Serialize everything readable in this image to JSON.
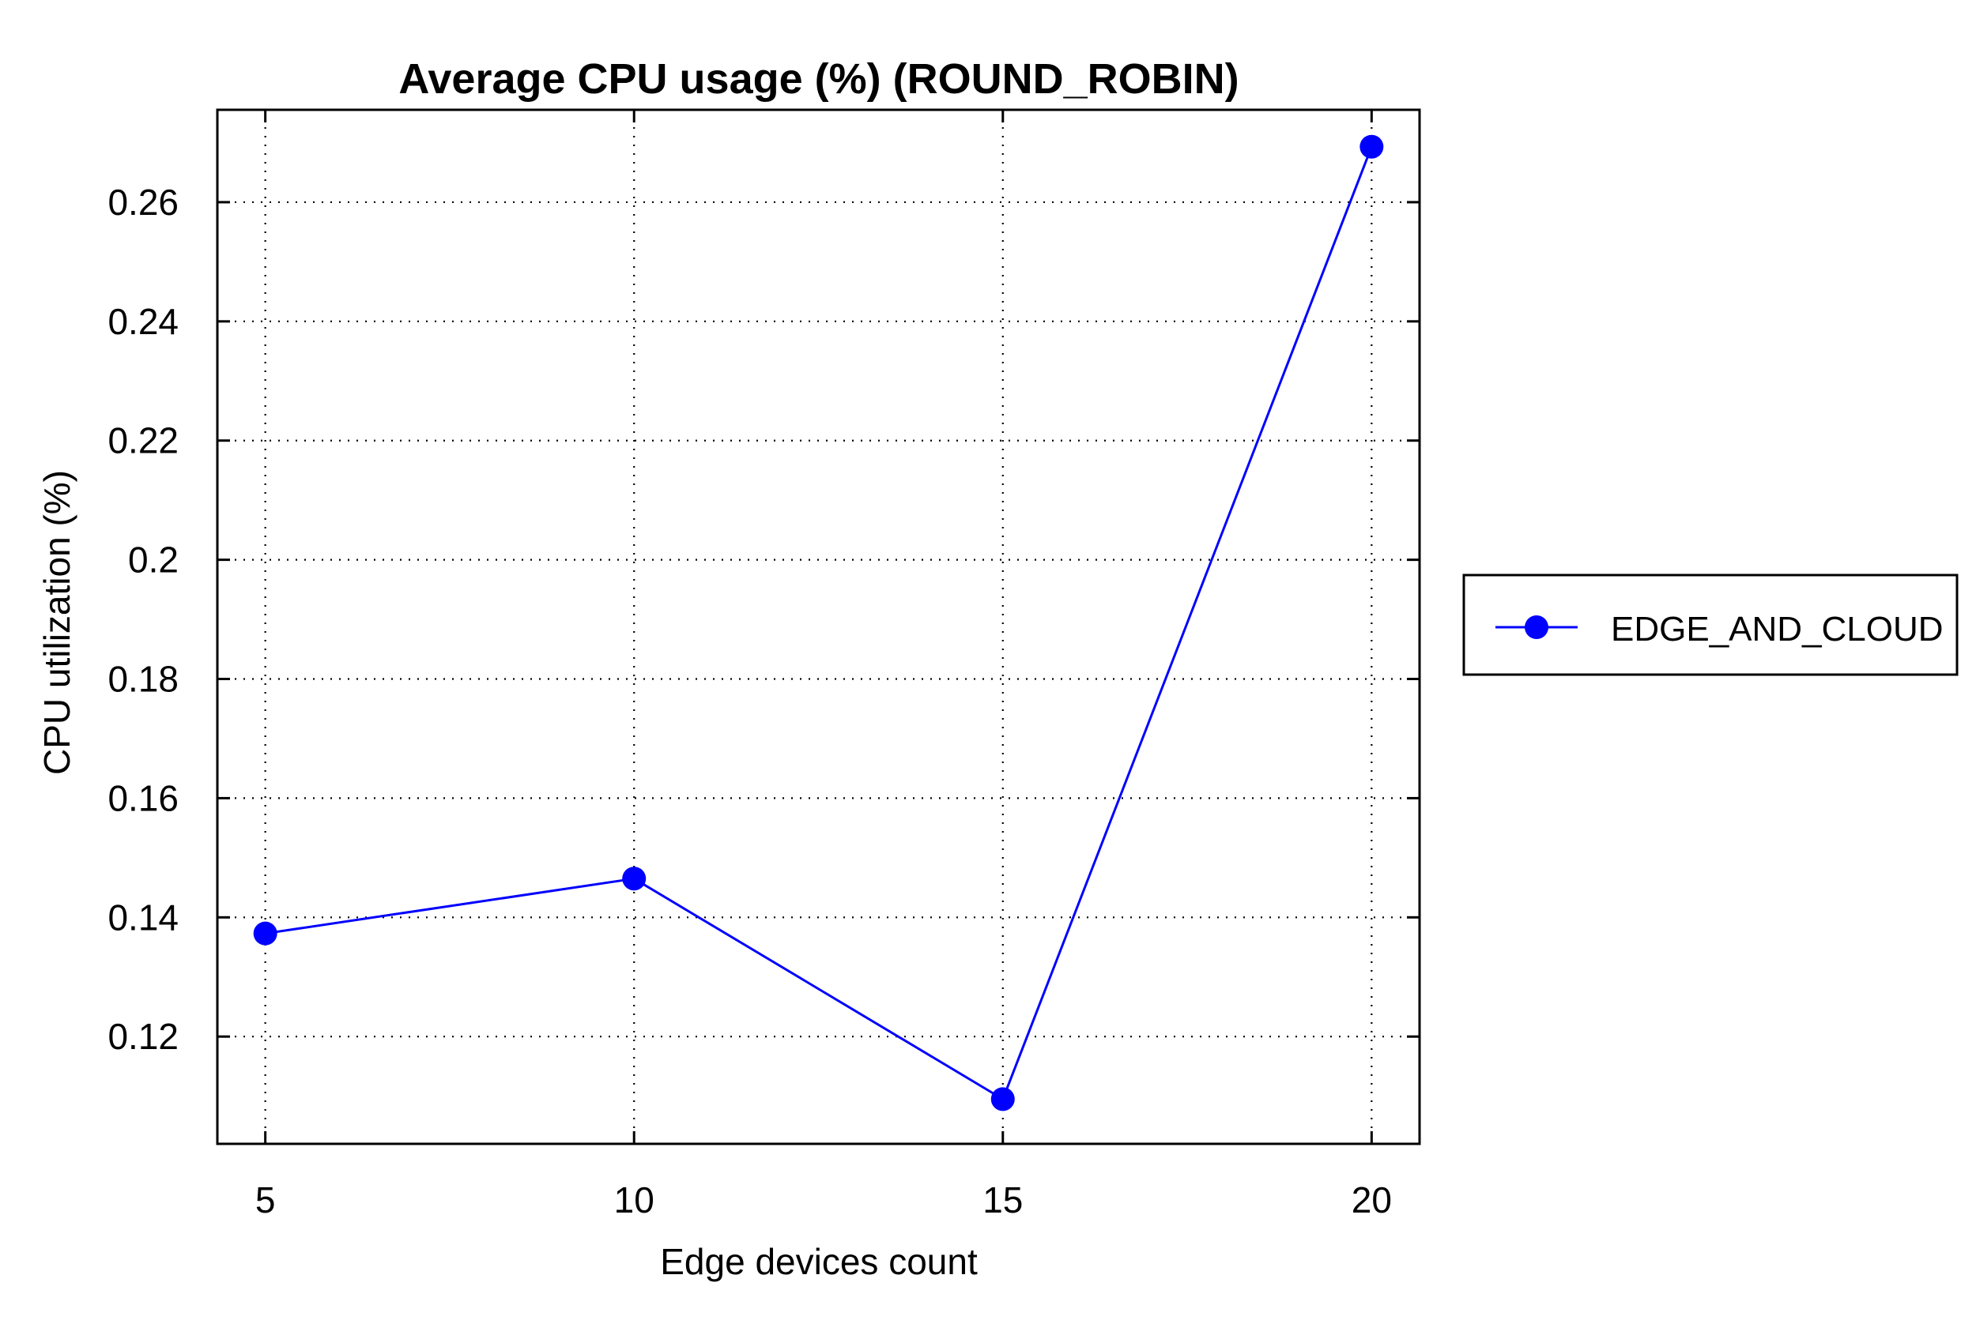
{
  "colors": {
    "series": "#0000ff",
    "axis": "#000000",
    "grid": "#000000",
    "background": "#ffffff"
  },
  "chart_data": {
    "type": "line",
    "title": "Average CPU usage (%) (ROUND_ROBIN)",
    "xlabel": "Edge devices count",
    "ylabel": "CPU utilization (%)",
    "x": [
      5,
      10,
      15,
      20
    ],
    "series": [
      {
        "name": "EDGE_AND_CLOUD",
        "values": [
          0.1373,
          0.1465,
          0.1095,
          0.2693
        ],
        "color": "#0000ff",
        "marker": "circle"
      }
    ],
    "xlim": [
      4.35,
      20.65
    ],
    "ylim": [
      0.102,
      0.2755
    ],
    "xticks": [
      5,
      10,
      15,
      20
    ],
    "xtick_labels": [
      "5",
      "10",
      "15",
      "20"
    ],
    "yticks": [
      0.12,
      0.14,
      0.16,
      0.18,
      0.2,
      0.22,
      0.24,
      0.26
    ],
    "ytick_labels": [
      "0.12",
      "0.14",
      "0.16",
      "0.18",
      "0.2",
      "0.22",
      "0.24",
      "0.26"
    ],
    "grid": true,
    "grid_style": "dotted",
    "legend_position": "outside-right"
  }
}
